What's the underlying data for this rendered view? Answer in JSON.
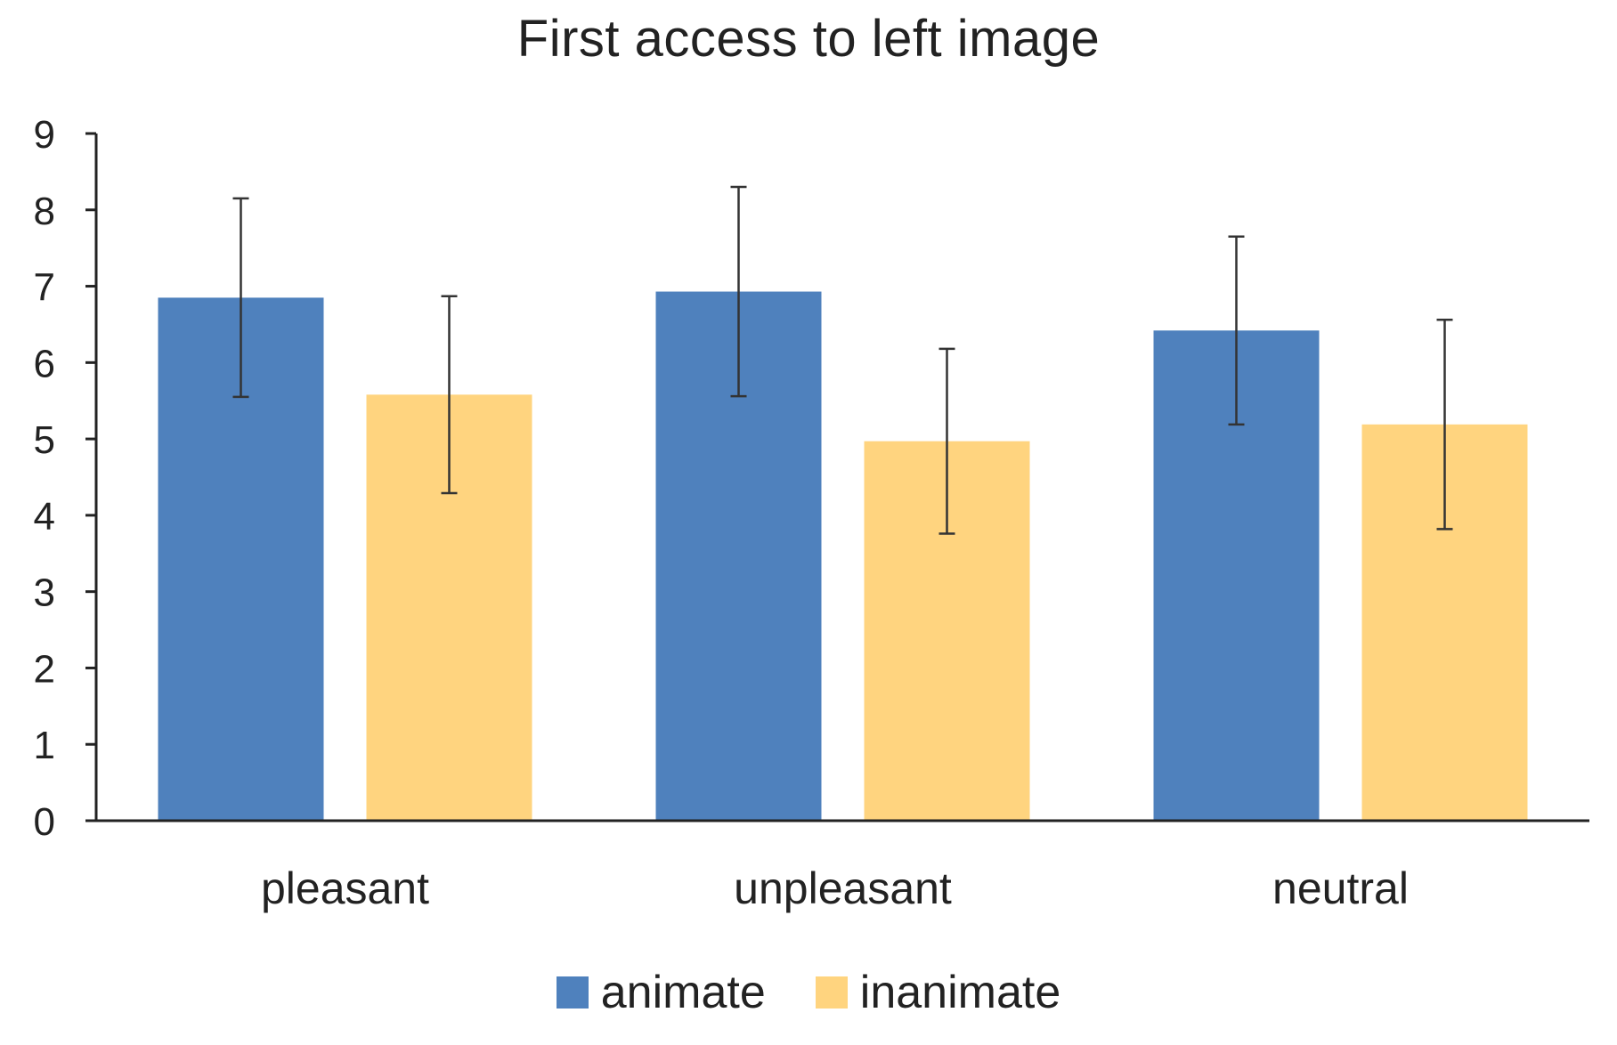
{
  "chart_data": {
    "type": "bar",
    "title": "First access to left image",
    "xlabel": "",
    "ylabel": "",
    "ylim": [
      0,
      9
    ],
    "yticks": [
      0,
      1,
      2,
      3,
      4,
      5,
      6,
      7,
      8,
      9
    ],
    "categories": [
      "pleasant",
      "unpleasant",
      "neutral"
    ],
    "series": [
      {
        "name": "animate",
        "color": "#4f81bd",
        "values": [
          6.85,
          6.93,
          6.42
        ],
        "errors": [
          1.3,
          1.37,
          1.23
        ]
      },
      {
        "name": "inanimate",
        "color": "#ffd47f",
        "values": [
          5.58,
          4.97,
          5.19
        ],
        "errors": [
          1.29,
          1.21,
          1.37
        ]
      }
    ],
    "grid": false,
    "legend": "bottom-center"
  }
}
